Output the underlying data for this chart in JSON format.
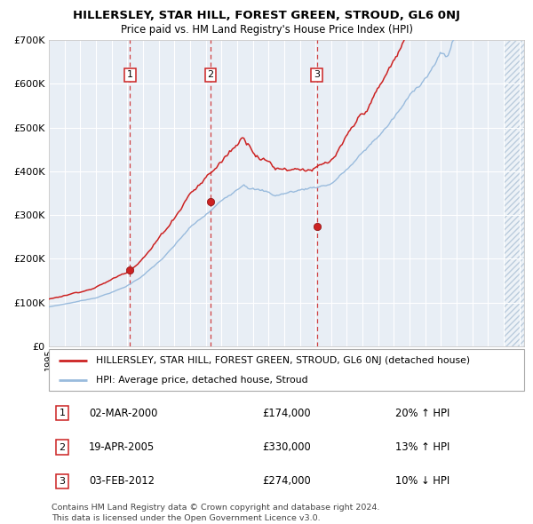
{
  "title": "HILLERSLEY, STAR HILL, FOREST GREEN, STROUD, GL6 0NJ",
  "subtitle": "Price paid vs. HM Land Registry's House Price Index (HPI)",
  "legend_red": "HILLERSLEY, STAR HILL, FOREST GREEN, STROUD, GL6 0NJ (detached house)",
  "legend_blue": "HPI: Average price, detached house, Stroud",
  "table": [
    {
      "num": "1",
      "date": "02-MAR-2000",
      "price": "£174,000",
      "pct": "20% ↑ HPI"
    },
    {
      "num": "2",
      "date": "19-APR-2005",
      "price": "£330,000",
      "pct": "13% ↑ HPI"
    },
    {
      "num": "3",
      "date": "03-FEB-2012",
      "price": "£274,000",
      "pct": "10% ↓ HPI"
    }
  ],
  "footnote1": "Contains HM Land Registry data © Crown copyright and database right 2024.",
  "footnote2": "This data is licensed under the Open Government Licence v3.0.",
  "sale_dates": [
    2000.17,
    2005.3,
    2012.09
  ],
  "sale_prices": [
    174000,
    330000,
    274000
  ],
  "ylim": [
    0,
    700000
  ],
  "xlim_start": 1995.0,
  "xlim_end": 2025.3,
  "plot_bg": "#e8eef5",
  "red_color": "#cc2222",
  "blue_color": "#99bbdd",
  "dashed_color": "#cc2222",
  "grid_color": "#ffffff",
  "hatch_start": 2024.0
}
